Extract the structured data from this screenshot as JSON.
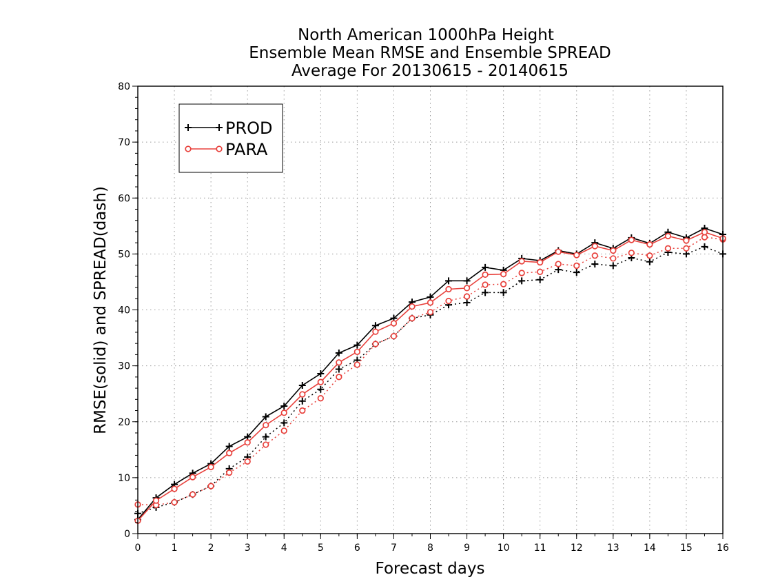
{
  "chart_data": {
    "type": "line",
    "title": [
      "North American 1000hPa Height",
      "Ensemble Mean RMSE and Ensemble SPREAD",
      "Average For 20130615 - 20140615"
    ],
    "xlabel": "Forecast days",
    "ylabel": "RMSE(solid) and SPREAD(dash)",
    "xlim": [
      0,
      16
    ],
    "ylim": [
      0,
      80
    ],
    "xticks": [
      "0",
      "1",
      "2",
      "3",
      "4",
      "5",
      "6",
      "7",
      "8",
      "9",
      "10",
      "11",
      "12",
      "13",
      "14",
      "15",
      "16"
    ],
    "yticks": [
      "0",
      "10",
      "20",
      "30",
      "40",
      "50",
      "60",
      "70",
      "80"
    ],
    "grid": true,
    "legend_position": "top-left",
    "x": [
      0,
      0.5,
      1,
      1.5,
      2,
      2.5,
      3,
      3.5,
      4,
      4.5,
      5,
      5.5,
      6,
      6.5,
      7,
      7.5,
      8,
      8.5,
      9,
      9.5,
      10,
      10.5,
      11,
      11.5,
      12,
      12.5,
      13,
      13.5,
      14,
      14.5,
      15,
      15.5,
      16
    ],
    "series": [
      {
        "name": "PROD",
        "metric": "RMSE",
        "style": "solid",
        "marker": "plus",
        "color": "#000000",
        "values": [
          2.5,
          6.4,
          8.8,
          10.8,
          12.5,
          15.6,
          17.3,
          20.9,
          22.8,
          26.5,
          28.6,
          32.3,
          33.7,
          37.2,
          38.5,
          41.4,
          42.3,
          45.2,
          45.2,
          47.6,
          47.1,
          49.2,
          48.8,
          50.6,
          50.0,
          52.0,
          51.0,
          52.9,
          51.9,
          53.9,
          52.9,
          54.6,
          53.5
        ]
      },
      {
        "name": "PARA",
        "metric": "RMSE",
        "style": "solid",
        "marker": "circle",
        "color": "#e8413c",
        "values": [
          2.3,
          5.9,
          8.0,
          10.1,
          11.9,
          14.4,
          16.3,
          19.4,
          21.6,
          24.9,
          27.1,
          30.6,
          32.5,
          36.1,
          37.6,
          40.6,
          41.3,
          43.7,
          43.9,
          46.3,
          46.4,
          48.7,
          48.5,
          50.4,
          49.8,
          51.4,
          50.6,
          52.5,
          51.7,
          53.2,
          52.4,
          53.9,
          52.8
        ]
      },
      {
        "name": "PROD",
        "metric": "SPREAD",
        "style": "dash",
        "marker": "plus",
        "color": "#000000",
        "values": [
          3.6,
          4.7,
          5.6,
          7.0,
          8.5,
          11.6,
          13.7,
          17.3,
          19.8,
          23.7,
          25.8,
          29.4,
          31.0,
          33.9,
          35.3,
          38.5,
          39.1,
          40.9,
          41.3,
          43.1,
          43.1,
          45.2,
          45.4,
          47.2,
          46.7,
          48.2,
          47.9,
          49.3,
          48.6,
          50.3,
          50.0,
          51.3,
          50.0
        ]
      },
      {
        "name": "PARA",
        "metric": "SPREAD",
        "style": "dash",
        "marker": "circle",
        "color": "#e8413c",
        "values": [
          5.2,
          5.1,
          5.6,
          7.0,
          8.5,
          10.9,
          12.9,
          15.9,
          18.4,
          22.0,
          24.2,
          28.0,
          30.2,
          33.9,
          35.3,
          38.5,
          39.6,
          41.6,
          42.4,
          44.5,
          44.6,
          46.6,
          46.8,
          48.2,
          47.9,
          49.7,
          49.2,
          50.2,
          49.7,
          51.0,
          51.0,
          53.0,
          52.6
        ]
      }
    ]
  }
}
